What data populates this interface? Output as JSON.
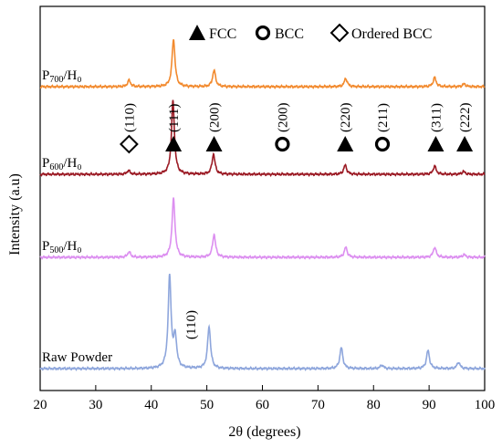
{
  "chart_data": {
    "type": "line",
    "xlabel": "2θ (degrees)",
    "ylabel": "Intensity (a.u)",
    "xlim": [
      20,
      100
    ],
    "x_ticks": [
      20,
      30,
      40,
      50,
      60,
      70,
      80,
      90,
      100
    ],
    "grid": false,
    "legend": [
      {
        "marker": "filled-triangle",
        "label": "FCC"
      },
      {
        "marker": "ring",
        "label": "BCC"
      },
      {
        "marker": "open-diamond",
        "label": "Ordered BCC"
      }
    ],
    "series": [
      {
        "label_main": "Raw Powder",
        "label_sub": "",
        "label_tail": "",
        "color": "#8ea6dc",
        "baseline": 0.0,
        "peaks": [
          [
            43.3,
            1.0
          ],
          [
            44.3,
            0.33
          ],
          [
            50.4,
            0.46
          ],
          [
            74.2,
            0.23
          ],
          [
            81.5,
            0.04
          ],
          [
            89.8,
            0.2
          ],
          [
            95.3,
            0.07
          ]
        ]
      },
      {
        "label_main": "P",
        "label_sub": "500",
        "label_tail": "/H₀",
        "color": "#dc8ff0",
        "baseline": 1.22,
        "peaks": [
          [
            36.0,
            0.06
          ],
          [
            44.0,
            0.64
          ],
          [
            51.3,
            0.25
          ],
          [
            75.0,
            0.11
          ],
          [
            91.0,
            0.11
          ],
          [
            96.3,
            0.03
          ]
        ]
      },
      {
        "label_main": "P",
        "label_sub": "600",
        "label_tail": "/H₀",
        "color": "#9b1a24",
        "baseline": 2.13,
        "peaks": [
          [
            35.9,
            0.04
          ],
          [
            43.9,
            0.8
          ],
          [
            51.2,
            0.22
          ],
          [
            74.9,
            0.1
          ],
          [
            91.0,
            0.09
          ],
          [
            96.2,
            0.03
          ]
        ]
      },
      {
        "label_main": "P",
        "label_sub": "700",
        "label_tail": "/H₀",
        "color": "#f28a2e",
        "baseline": 3.09,
        "peaks": [
          [
            36.0,
            0.07
          ],
          [
            44.0,
            0.52
          ],
          [
            51.3,
            0.18
          ],
          [
            75.0,
            0.09
          ],
          [
            91.0,
            0.1
          ],
          [
            96.3,
            0.03
          ]
        ]
      }
    ],
    "phase_markers": [
      {
        "x": 36.0,
        "label": "(110)",
        "marker": "open-diamond"
      },
      {
        "x": 44.0,
        "label": "(111)",
        "marker": "filled-triangle"
      },
      {
        "x": 51.3,
        "label": "(200)",
        "marker": "filled-triangle"
      },
      {
        "x": 63.6,
        "label": "(200)",
        "marker": "ring"
      },
      {
        "x": 74.9,
        "label": "(220)",
        "marker": "filled-triangle"
      },
      {
        "x": 81.6,
        "label": "(211)",
        "marker": "ring"
      },
      {
        "x": 91.2,
        "label": "(311)",
        "marker": "filled-triangle"
      },
      {
        "x": 96.4,
        "label": "(222)",
        "marker": "filled-triangle"
      }
    ],
    "annotations": [
      {
        "x": 44.3,
        "text": "(110)"
      }
    ]
  }
}
